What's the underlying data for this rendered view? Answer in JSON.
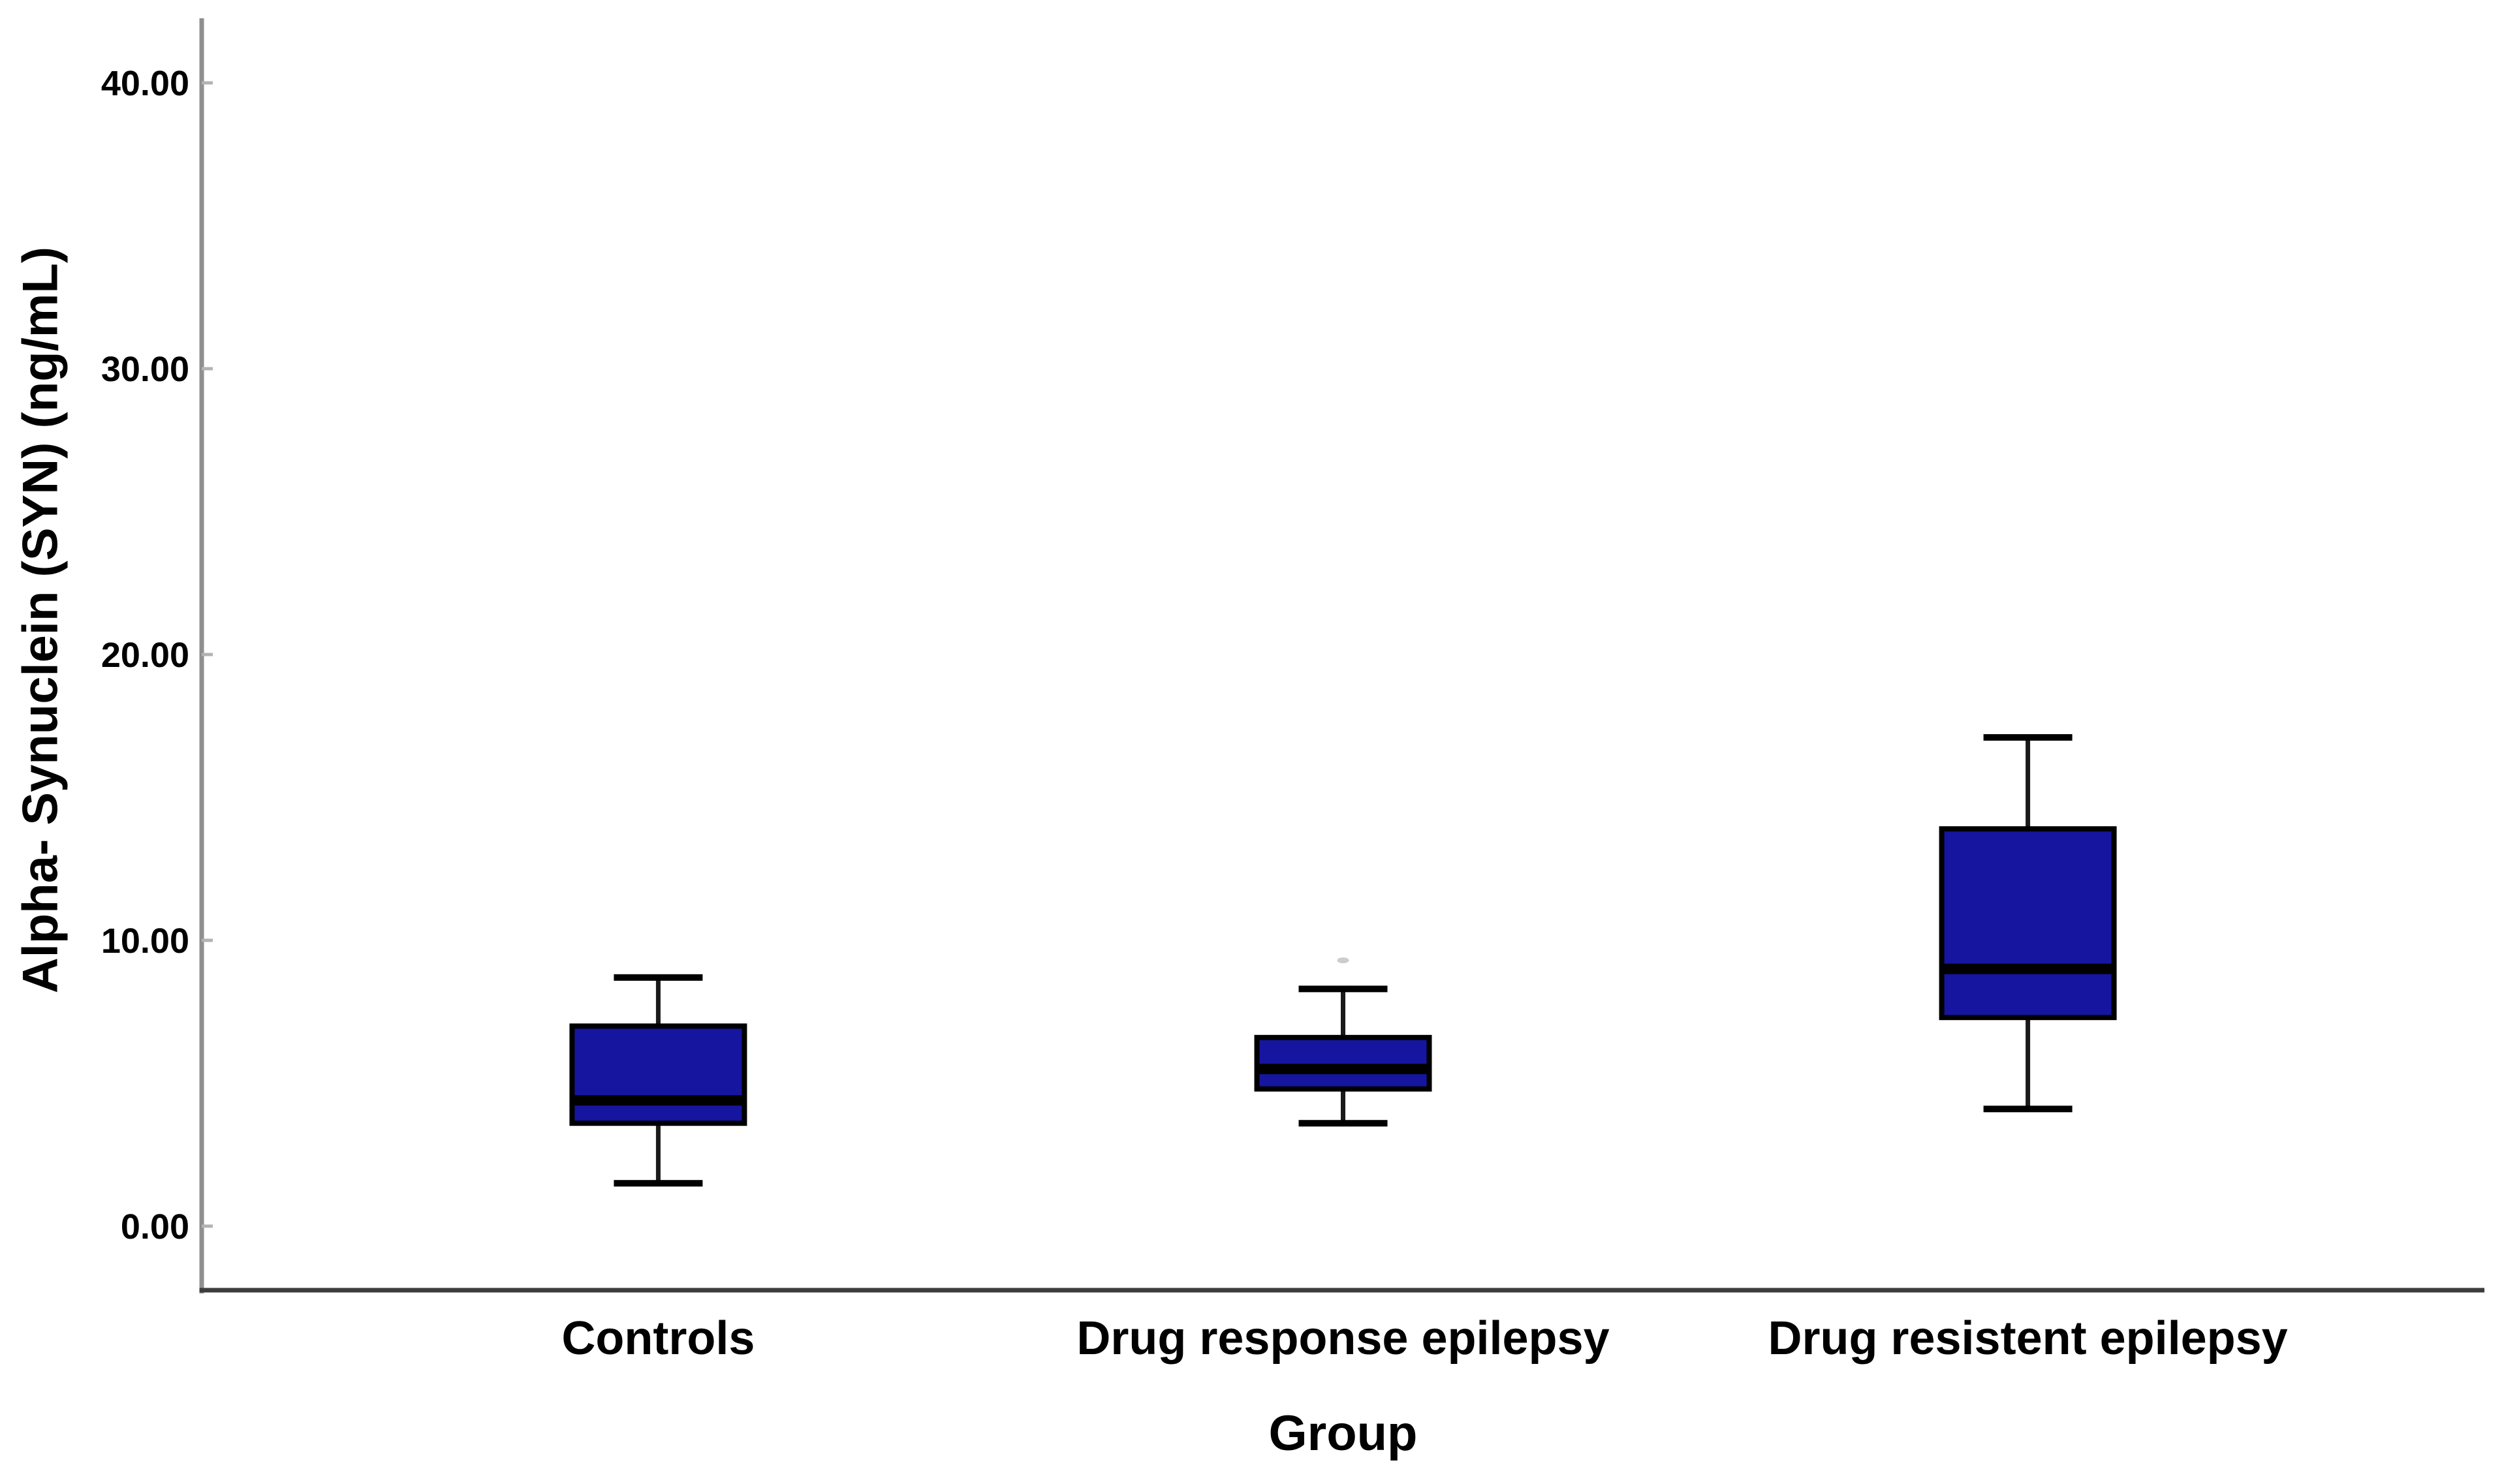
{
  "figure": {
    "background": "#ffffff"
  },
  "chart_data": {
    "type": "box",
    "title": "",
    "xlabel": "Group",
    "ylabel": "Alpha- Synuclein (SYN) (ng/mL)",
    "categories": [
      "Controls",
      "Drug response epilepsy",
      "Drug resistent epilepsy"
    ],
    "y_tick_labels": [
      "0.00",
      "10.00",
      "20.00",
      "30.00",
      "40.00"
    ],
    "y_tick_values": [
      0,
      10,
      20,
      30,
      40
    ],
    "ylim": [
      -2.24,
      42.26
    ],
    "grid": false,
    "legend": false,
    "groups": [
      {
        "label": "Controls",
        "whisker_low": 1.5,
        "q1": 3.6,
        "median": 4.4,
        "q3": 7.0,
        "whisker_high": 8.7,
        "outliers": []
      },
      {
        "label": "Drug response epilepsy",
        "whisker_low": 3.6,
        "q1": 4.8,
        "median": 5.5,
        "q3": 6.6,
        "whisker_high": 8.3,
        "outliers": [
          9.3
        ]
      },
      {
        "label": "Drug resistent epilepsy",
        "whisker_low": 4.1,
        "q1": 7.3,
        "median": 9.0,
        "q3": 13.9,
        "whisker_high": 17.1,
        "outliers": []
      }
    ],
    "colors": {
      "box_fill": "#15159f",
      "box_border": "#000000",
      "median": "#000000",
      "whisker": "#1a1a1a",
      "cap": "#000000",
      "axis_y": "#8f8f8f",
      "axis_x": "#3d3d3d",
      "tick": "#b3b3b3",
      "text": "#000000",
      "outlier": "#cccccc"
    }
  }
}
